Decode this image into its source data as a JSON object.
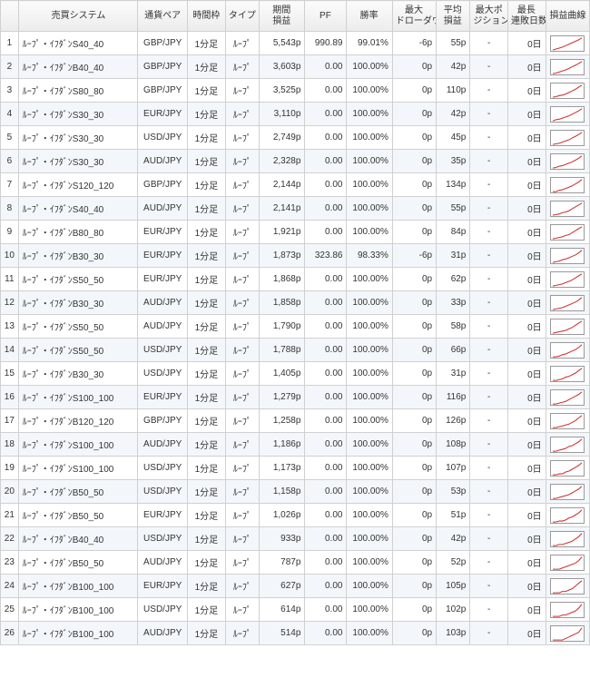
{
  "columns": {
    "idx": "",
    "system": "売買システム",
    "pair": "通貨ペア",
    "timeframe": "時間枠",
    "type": "タイプ",
    "period_pl": "期間\n損益",
    "pf": "PF",
    "winrate": "勝率",
    "max_dd": "最大\nドローダウン",
    "avg_pl": "平均\n損益",
    "max_pos": "最大ポ\nジション数",
    "max_losing_days": "最長\n連敗日数",
    "equity_curve": "損益曲線"
  },
  "spark": {
    "stroke": "#cc3333",
    "stroke_width": 1.2,
    "bg": "#ffffff",
    "border": "#999999"
  },
  "rows": [
    {
      "idx": 1,
      "sys": "ﾙｰﾌﾟ・ｲﾌﾀﾞﾝS40_40",
      "pair": "GBP/JPY",
      "tf": "1分足",
      "type": "ﾙｰﾌﾟ",
      "pl": "5,543p",
      "pf": "990.89",
      "win": "99.01%",
      "dd": "-6p",
      "avg": "55p",
      "pos": "-",
      "days": "0日",
      "curve": [
        0,
        2,
        4,
        6,
        9,
        12,
        15,
        18,
        21,
        25
      ]
    },
    {
      "idx": 2,
      "sys": "ﾙｰﾌﾟ・ｲﾌﾀﾞﾝB40_40",
      "pair": "GBP/JPY",
      "tf": "1分足",
      "type": "ﾙｰﾌﾟ",
      "pl": "3,603p",
      "pf": "0.00",
      "win": "100.00%",
      "dd": "0p",
      "avg": "42p",
      "pos": "-",
      "days": "0日",
      "curve": [
        0,
        1,
        3,
        5,
        7,
        10,
        13,
        16,
        19,
        23
      ]
    },
    {
      "idx": 3,
      "sys": "ﾙｰﾌﾟ・ｲﾌﾀﾞﾝS80_80",
      "pair": "GBP/JPY",
      "tf": "1分足",
      "type": "ﾙｰﾌﾟ",
      "pl": "3,525p",
      "pf": "0.00",
      "win": "100.00%",
      "dd": "0p",
      "avg": "110p",
      "pos": "-",
      "days": "0日",
      "curve": [
        0,
        1,
        3,
        4,
        6,
        9,
        12,
        15,
        19,
        23
      ]
    },
    {
      "idx": 4,
      "sys": "ﾙｰﾌﾟ・ｲﾌﾀﾞﾝS30_30",
      "pair": "EUR/JPY",
      "tf": "1分足",
      "type": "ﾙｰﾌﾟ",
      "pl": "3,110p",
      "pf": "0.00",
      "win": "100.00%",
      "dd": "0p",
      "avg": "42p",
      "pos": "-",
      "days": "0日",
      "curve": [
        0,
        2,
        3,
        5,
        7,
        9,
        12,
        15,
        18,
        22
      ]
    },
    {
      "idx": 5,
      "sys": "ﾙｰﾌﾟ・ｲﾌﾀﾞﾝS30_30",
      "pair": "USD/JPY",
      "tf": "1分足",
      "type": "ﾙｰﾌﾟ",
      "pl": "2,749p",
      "pf": "0.00",
      "win": "100.00%",
      "dd": "0p",
      "avg": "45p",
      "pos": "-",
      "days": "0日",
      "curve": [
        0,
        1,
        2,
        4,
        6,
        8,
        11,
        14,
        17,
        21
      ]
    },
    {
      "idx": 6,
      "sys": "ﾙｰﾌﾟ・ｲﾌﾀﾞﾝS30_30",
      "pair": "AUD/JPY",
      "tf": "1分足",
      "type": "ﾙｰﾌﾟ",
      "pl": "2,328p",
      "pf": "0.00",
      "win": "100.00%",
      "dd": "0p",
      "avg": "35p",
      "pos": "-",
      "days": "0日",
      "curve": [
        0,
        1,
        3,
        4,
        6,
        8,
        10,
        13,
        16,
        20
      ]
    },
    {
      "idx": 7,
      "sys": "ﾙｰﾌﾟ・ｲﾌﾀﾞﾝS120_120",
      "pair": "GBP/JPY",
      "tf": "1分足",
      "type": "ﾙｰﾌﾟ",
      "pl": "2,144p",
      "pf": "0.00",
      "win": "100.00%",
      "dd": "0p",
      "avg": "134p",
      "pos": "-",
      "days": "0日",
      "curve": [
        0,
        0,
        2,
        3,
        5,
        7,
        9,
        12,
        15,
        19
      ]
    },
    {
      "idx": 8,
      "sys": "ﾙｰﾌﾟ・ｲﾌﾀﾞﾝS40_40",
      "pair": "AUD/JPY",
      "tf": "1分足",
      "type": "ﾙｰﾌﾟ",
      "pl": "2,141p",
      "pf": "0.00",
      "win": "100.00%",
      "dd": "0p",
      "avg": "55p",
      "pos": "-",
      "days": "0日",
      "curve": [
        0,
        1,
        2,
        4,
        5,
        7,
        10,
        13,
        16,
        19
      ]
    },
    {
      "idx": 9,
      "sys": "ﾙｰﾌﾟ・ｲﾌﾀﾞﾝB80_80",
      "pair": "EUR/JPY",
      "tf": "1分足",
      "type": "ﾙｰﾌﾟ",
      "pl": "1,921p",
      "pf": "0.00",
      "win": "100.00%",
      "dd": "0p",
      "avg": "84p",
      "pos": "-",
      "days": "0日",
      "curve": [
        0,
        1,
        2,
        3,
        5,
        6,
        9,
        12,
        15,
        18
      ]
    },
    {
      "idx": 10,
      "sys": "ﾙｰﾌﾟ・ｲﾌﾀﾞﾝB30_30",
      "pair": "EUR/JPY",
      "tf": "1分足",
      "type": "ﾙｰﾌﾟ",
      "pl": "1,873p",
      "pf": "323.86",
      "win": "98.33%",
      "dd": "-6p",
      "avg": "31p",
      "pos": "-",
      "days": "0日",
      "curve": [
        0,
        1,
        2,
        4,
        5,
        7,
        9,
        11,
        14,
        18
      ]
    },
    {
      "idx": 11,
      "sys": "ﾙｰﾌﾟ・ｲﾌﾀﾞﾝS50_50",
      "pair": "EUR/JPY",
      "tf": "1分足",
      "type": "ﾙｰﾌﾟ",
      "pl": "1,868p",
      "pf": "0.00",
      "win": "100.00%",
      "dd": "0p",
      "avg": "62p",
      "pos": "-",
      "days": "0日",
      "curve": [
        0,
        1,
        2,
        3,
        5,
        7,
        9,
        12,
        15,
        18
      ]
    },
    {
      "idx": 12,
      "sys": "ﾙｰﾌﾟ・ｲﾌﾀﾞﾝB30_30",
      "pair": "AUD/JPY",
      "tf": "1分足",
      "type": "ﾙｰﾌﾟ",
      "pl": "1,858p",
      "pf": "0.00",
      "win": "100.00%",
      "dd": "0p",
      "avg": "33p",
      "pos": "-",
      "days": "0日",
      "curve": [
        0,
        1,
        2,
        3,
        5,
        7,
        9,
        11,
        14,
        18
      ]
    },
    {
      "idx": 13,
      "sys": "ﾙｰﾌﾟ・ｲﾌﾀﾞﾝS50_50",
      "pair": "AUD/JPY",
      "tf": "1分足",
      "type": "ﾙｰﾌﾟ",
      "pl": "1,790p",
      "pf": "0.00",
      "win": "100.00%",
      "dd": "0p",
      "avg": "58p",
      "pos": "-",
      "days": "0日",
      "curve": [
        0,
        1,
        2,
        3,
        4,
        6,
        8,
        11,
        14,
        17
      ]
    },
    {
      "idx": 14,
      "sys": "ﾙｰﾌﾟ・ｲﾌﾀﾞﾝS50_50",
      "pair": "USD/JPY",
      "tf": "1分足",
      "type": "ﾙｰﾌﾟ",
      "pl": "1,788p",
      "pf": "0.00",
      "win": "100.00%",
      "dd": "0p",
      "avg": "66p",
      "pos": "-",
      "days": "0日",
      "curve": [
        0,
        0,
        1,
        3,
        4,
        6,
        8,
        10,
        13,
        17
      ]
    },
    {
      "idx": 15,
      "sys": "ﾙｰﾌﾟ・ｲﾌﾀﾞﾝB30_30",
      "pair": "USD/JPY",
      "tf": "1分足",
      "type": "ﾙｰﾌﾟ",
      "pl": "1,405p",
      "pf": "0.00",
      "win": "100.00%",
      "dd": "0p",
      "avg": "31p",
      "pos": "-",
      "days": "0日",
      "curve": [
        0,
        0,
        1,
        2,
        4,
        5,
        7,
        9,
        12,
        15
      ]
    },
    {
      "idx": 16,
      "sys": "ﾙｰﾌﾟ・ｲﾌﾀﾞﾝS100_100",
      "pair": "EUR/JPY",
      "tf": "1分足",
      "type": "ﾙｰﾌﾟ",
      "pl": "1,279p",
      "pf": "0.00",
      "win": "100.00%",
      "dd": "0p",
      "avg": "116p",
      "pos": "-",
      "days": "0日",
      "curve": [
        0,
        0,
        1,
        2,
        3,
        5,
        7,
        9,
        11,
        14
      ]
    },
    {
      "idx": 17,
      "sys": "ﾙｰﾌﾟ・ｲﾌﾀﾞﾝB120_120",
      "pair": "GBP/JPY",
      "tf": "1分足",
      "type": "ﾙｰﾌﾟ",
      "pl": "1,258p",
      "pf": "0.00",
      "win": "100.00%",
      "dd": "0p",
      "avg": "126p",
      "pos": "-",
      "days": "0日",
      "curve": [
        0,
        0,
        1,
        2,
        3,
        4,
        6,
        8,
        11,
        14
      ]
    },
    {
      "idx": 18,
      "sys": "ﾙｰﾌﾟ・ｲﾌﾀﾞﾝS100_100",
      "pair": "AUD/JPY",
      "tf": "1分足",
      "type": "ﾙｰﾌﾟ",
      "pl": "1,186p",
      "pf": "0.00",
      "win": "100.00%",
      "dd": "0p",
      "avg": "108p",
      "pos": "-",
      "days": "0日",
      "curve": [
        0,
        0,
        1,
        2,
        3,
        5,
        6,
        8,
        10,
        13
      ]
    },
    {
      "idx": 19,
      "sys": "ﾙｰﾌﾟ・ｲﾌﾀﾞﾝS100_100",
      "pair": "USD/JPY",
      "tf": "1分足",
      "type": "ﾙｰﾌﾟ",
      "pl": "1,173p",
      "pf": "0.00",
      "win": "100.00%",
      "dd": "0p",
      "avg": "107p",
      "pos": "-",
      "days": "0日",
      "curve": [
        0,
        0,
        1,
        1,
        3,
        4,
        6,
        8,
        10,
        13
      ]
    },
    {
      "idx": 20,
      "sys": "ﾙｰﾌﾟ・ｲﾌﾀﾞﾝB50_50",
      "pair": "USD/JPY",
      "tf": "1分足",
      "type": "ﾙｰﾌﾟ",
      "pl": "1,158p",
      "pf": "0.00",
      "win": "100.00%",
      "dd": "0p",
      "avg": "53p",
      "pos": "-",
      "days": "0日",
      "curve": [
        0,
        0,
        1,
        2,
        3,
        4,
        6,
        8,
        10,
        13
      ]
    },
    {
      "idx": 21,
      "sys": "ﾙｰﾌﾟ・ｲﾌﾀﾞﾝB50_50",
      "pair": "EUR/JPY",
      "tf": "1分足",
      "type": "ﾙｰﾌﾟ",
      "pl": "1,026p",
      "pf": "0.00",
      "win": "100.00%",
      "dd": "0p",
      "avg": "51p",
      "pos": "-",
      "days": "0日",
      "curve": [
        0,
        0,
        1,
        1,
        2,
        4,
        5,
        7,
        9,
        12
      ]
    },
    {
      "idx": 22,
      "sys": "ﾙｰﾌﾟ・ｲﾌﾀﾞﾝB40_40",
      "pair": "USD/JPY",
      "tf": "1分足",
      "type": "ﾙｰﾌﾟ",
      "pl": "933p",
      "pf": "0.00",
      "win": "100.00%",
      "dd": "0p",
      "avg": "42p",
      "pos": "-",
      "days": "0日",
      "curve": [
        0,
        0,
        1,
        1,
        2,
        3,
        4,
        6,
        8,
        11
      ]
    },
    {
      "idx": 23,
      "sys": "ﾙｰﾌﾟ・ｲﾌﾀﾞﾝB50_50",
      "pair": "AUD/JPY",
      "tf": "1分足",
      "type": "ﾙｰﾌﾟ",
      "pl": "787p",
      "pf": "0.00",
      "win": "100.00%",
      "dd": "0p",
      "avg": "52p",
      "pos": "-",
      "days": "0日",
      "curve": [
        0,
        0,
        0,
        1,
        2,
        3,
        4,
        5,
        7,
        10
      ]
    },
    {
      "idx": 24,
      "sys": "ﾙｰﾌﾟ・ｲﾌﾀﾞﾝB100_100",
      "pair": "EUR/JPY",
      "tf": "1分足",
      "type": "ﾙｰﾌﾟ",
      "pl": "627p",
      "pf": "0.00",
      "win": "100.00%",
      "dd": "0p",
      "avg": "105p",
      "pos": "-",
      "days": "0日",
      "curve": [
        0,
        0,
        0,
        1,
        1,
        2,
        3,
        5,
        7,
        9
      ]
    },
    {
      "idx": 25,
      "sys": "ﾙｰﾌﾟ・ｲﾌﾀﾞﾝB100_100",
      "pair": "USD/JPY",
      "tf": "1分足",
      "type": "ﾙｰﾌﾟ",
      "pl": "614p",
      "pf": "0.00",
      "win": "100.00%",
      "dd": "0p",
      "avg": "102p",
      "pos": "-",
      "days": "0日",
      "curve": [
        0,
        0,
        0,
        1,
        1,
        2,
        3,
        4,
        6,
        9
      ]
    },
    {
      "idx": 26,
      "sys": "ﾙｰﾌﾟ・ｲﾌﾀﾞﾝB100_100",
      "pair": "AUD/JPY",
      "tf": "1分足",
      "type": "ﾙｰﾌﾟ",
      "pl": "514p",
      "pf": "0.00",
      "win": "100.00%",
      "dd": "0p",
      "avg": "103p",
      "pos": "-",
      "days": "0日",
      "curve": [
        0,
        0,
        0,
        0,
        1,
        2,
        3,
        4,
        5,
        8
      ]
    }
  ]
}
